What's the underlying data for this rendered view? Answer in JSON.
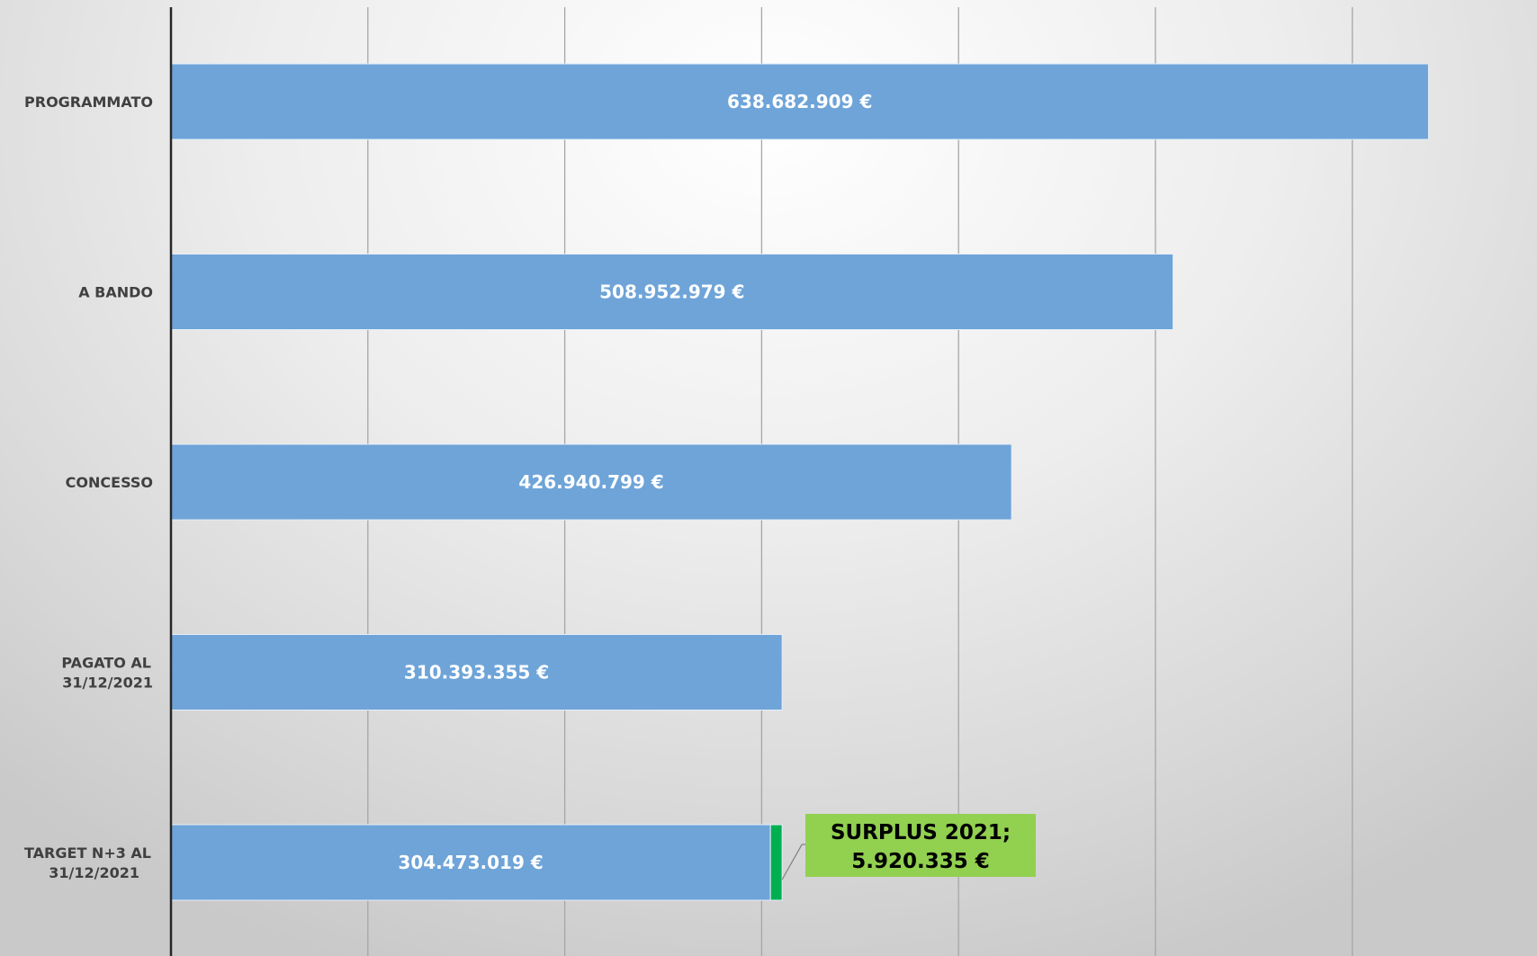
{
  "chart_data": {
    "type": "bar",
    "orientation": "horizontal",
    "stacked": true,
    "categories": [
      "PROGRAMMATO",
      "A BANDO",
      "CONCESSO",
      "PAGATO AL 31/12/2021",
      "TARGET N+3 AL 31/12/2021"
    ],
    "category_lines": [
      [
        "PROGRAMMATO"
      ],
      [
        "A BANDO"
      ],
      [
        "CONCESSO"
      ],
      [
        "PAGATO AL",
        "31/12/2021"
      ],
      [
        "TARGET N+3 AL",
        "31/12/2021"
      ]
    ],
    "series": [
      {
        "color": "#6ea4d8",
        "values": [
          638682909,
          508952979,
          426940799,
          310393355,
          304473019
        ],
        "data_labels": [
          "638.682.909 €",
          "508.952.979 €",
          "426.940.799 €",
          "310.393.355 €",
          "304.473.019 €"
        ]
      },
      {
        "color": "#00b050",
        "values": [
          0,
          0,
          0,
          0,
          5920335
        ]
      }
    ],
    "callout": {
      "lines": [
        "SURPLUS 2021;",
        "5.920.335 €"
      ],
      "background": "#92d050"
    },
    "xlim": [
      0,
      700000000
    ],
    "x_gridline_step": 100000000,
    "x_tick_labels_visible": false,
    "grid": true,
    "legend": "none"
  }
}
